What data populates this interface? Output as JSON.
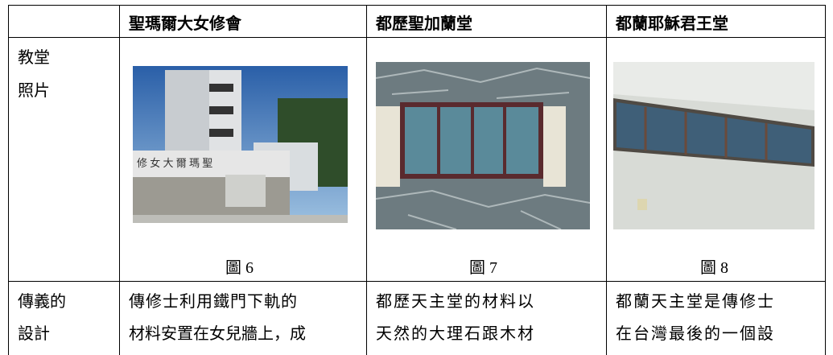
{
  "table": {
    "header": [
      "聖瑪爾大女修會",
      "都歷聖加蘭堂",
      "都蘭耶穌君王堂"
    ],
    "photo_row": {
      "label": [
        "教堂",
        "照片"
      ],
      "captions": [
        "圖 6",
        "圖 7",
        "圖 8"
      ]
    },
    "design_row": {
      "label": [
        "傳義的",
        "設計"
      ],
      "cells": [
        [
          "傳修士利用鐵門下軌的",
          "材料安置在女兒牆上，成"
        ],
        [
          "都歷天主堂的材料以",
          "天然的大理石跟木材"
        ],
        [
          "都蘭天主堂是傳修士",
          "在台灣最後的一個設"
        ]
      ]
    }
  }
}
